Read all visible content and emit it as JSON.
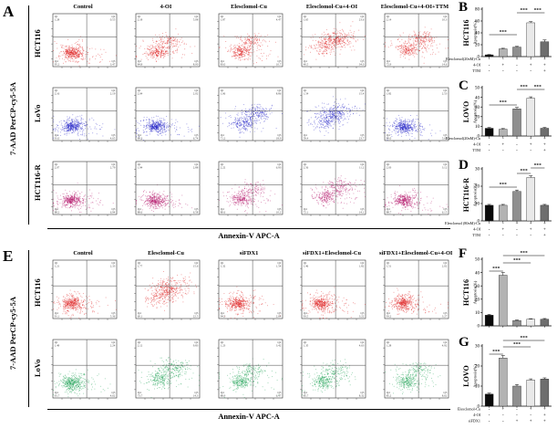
{
  "quadrant_names": {
    "top_left": "Q1",
    "top_right": "Q2",
    "bottom_left": "Q4",
    "bottom_right": "Q3"
  },
  "bar_colors": [
    "#0a0a0a",
    "#b3b3b3",
    "#8f8f8f",
    "#e9e9e9",
    "#6e6e6e"
  ],
  "flow_panels": [
    {
      "letter": "A",
      "ylabel": "7-AAD PerCP-cy5-5A",
      "xlabel": "Annexin-V APC-A",
      "columns": [
        "Control",
        "4-OI",
        "Elesclomol-Cu",
        "Elesclomol-Cu+4-OI",
        "Elesclomol-Cu+4-OI+TTM"
      ],
      "rows": [
        {
          "label": "HCT116",
          "color": "#e01d1d",
          "plots": [
            {
              "q1": "1.28",
              "q2": "0.55",
              "q4": "95.2",
              "q3": "3.47",
              "profile": "low"
            },
            {
              "q1": "2.18",
              "q2": "5.08",
              "q4": "84.8",
              "q3": "8.00",
              "profile": "mid"
            },
            {
              "q1": "1.87",
              "q2": "4.47",
              "q4": "83.0",
              "q3": "10.7",
              "profile": "mid"
            },
            {
              "q1": "1.65",
              "q2": "23.6",
              "q4": "40.5",
              "q3": "34.0",
              "profile": "vhigh"
            },
            {
              "q1": "2.14",
              "q2": "10.3",
              "q4": "72.9",
              "q3": "14.6",
              "profile": "high"
            }
          ]
        },
        {
          "label": "LoVo",
          "color": "#2222c8",
          "plots": [
            {
              "q1": "2.16",
              "q2": "2.19",
              "q4": "91.0",
              "q3": "4.65",
              "profile": "low"
            },
            {
              "q1": "2.04",
              "q2": "2.02",
              "q4": "89.2",
              "q3": "6.74",
              "profile": "low"
            },
            {
              "q1": "1.06",
              "q2": "8.86",
              "q4": "71.2",
              "q3": "18.9",
              "profile": "high"
            },
            {
              "q1": "1.54",
              "q2": "15.4",
              "q4": "59.4",
              "q3": "23.7",
              "profile": "vhigh"
            },
            {
              "q1": "1.82",
              "q2": "2.53",
              "q4": "90.0",
              "q3": "5.65",
              "profile": "low"
            }
          ]
        },
        {
          "label": "HCT116-R",
          "color": "#b5156b",
          "plots": [
            {
              "q1": "2.07",
              "q2": "2.79",
              "q4": "88.2",
              "q3": "6.94",
              "profile": "low"
            },
            {
              "q1": "1.94",
              "q2": "2.88",
              "q4": "88.6",
              "q3": "6.58",
              "profile": "low"
            },
            {
              "q1": "2.22",
              "q2": "6.93",
              "q4": "80.6",
              "q3": "10.2",
              "profile": "mid"
            },
            {
              "q1": "2.56",
              "q2": "11.2",
              "q4": "72.1",
              "q3": "14.1",
              "profile": "high"
            },
            {
              "q1": "2.03",
              "q2": "3.12",
              "q4": "88.7",
              "q3": "6.15",
              "profile": "low"
            }
          ]
        }
      ]
    },
    {
      "letter": "E",
      "ylabel": "7-AAD PerCP-cy5-5A",
      "xlabel": "Annexin-V APC-A",
      "columns": [
        "Control",
        "Elesclomol-Cu",
        "siFDX1",
        "siFDX1+Elesclomol-Cu",
        "siFDX1+Elesclomol-Cu+4-OI"
      ],
      "rows": [
        {
          "label": "HCT116",
          "color": "#e01d1d",
          "plots": [
            {
              "q1": "1.21",
              "q2": "2.33",
              "q4": "91.1",
              "q3": "5.36",
              "profile": "low"
            },
            {
              "q1": "1.77",
              "q2": "15.6",
              "q4": "60.1",
              "q3": "22.5",
              "profile": "vhigh"
            },
            {
              "q1": "1.32",
              "q2": "1.54",
              "q4": "94.5",
              "q3": "2.64",
              "profile": "low"
            },
            {
              "q1": "1.46",
              "q2": "1.82",
              "q4": "93.5",
              "q3": "3.22",
              "profile": "low"
            },
            {
              "q1": "1.51",
              "q2": "2.02",
              "q4": "93.2",
              "q3": "3.27",
              "profile": "low"
            }
          ]
        },
        {
          "label": "LoVo",
          "color": "#18a050",
          "plots": [
            {
              "q1": "1.49",
              "q2": "2.24",
              "q4": "91.7",
              "q3": "4.62",
              "profile": "low"
            },
            {
              "q1": "2.12",
              "q2": "9.83",
              "q4": "73.7",
              "q3": "14.3",
              "profile": "high"
            },
            {
              "q1": "1.23",
              "q2": "3.42",
              "q4": "88.9",
              "q3": "6.47",
              "profile": "mid"
            },
            {
              "q1": "1.35",
              "q2": "4.63",
              "q4": "85.7",
              "q3": "8.32",
              "profile": "mid"
            },
            {
              "q1": "1.28",
              "q2": "4.92",
              "q4": "85.2",
              "q3": "8.62",
              "profile": "mid"
            }
          ]
        }
      ]
    }
  ],
  "chart_data": [
    {
      "type": "bar",
      "letter": "B",
      "cell_line": "HCT116",
      "ylabel": "Apoptosis(%)",
      "ylim": [
        0,
        80
      ],
      "yticks": [
        0,
        20,
        40,
        60,
        80
      ],
      "values": [
        3,
        13,
        16,
        57,
        25
      ],
      "errors": [
        0.5,
        1,
        1.2,
        1.8,
        3
      ],
      "sig": [
        {
          "a": 0,
          "b": 2,
          "y": 38,
          "label": "***"
        },
        {
          "a": 2,
          "b": 3,
          "y": 14,
          "label": "***"
        },
        {
          "a": 3,
          "b": 4,
          "y": 14,
          "label": "***"
        }
      ],
      "conditions": [
        {
          "label": "Elesclomol(20nM)-Cu",
          "signs": [
            "-",
            "-",
            "+",
            "+",
            "+"
          ]
        },
        {
          "label": "4-OI",
          "signs": [
            "-",
            "+",
            "-",
            "+",
            "+"
          ]
        },
        {
          "label": "TTM",
          "signs": [
            "-",
            "-",
            "-",
            "-",
            "+"
          ]
        }
      ]
    },
    {
      "type": "bar",
      "letter": "C",
      "cell_line": "LOVO",
      "ylabel": "Apoptosis(%)",
      "ylim": [
        0,
        50
      ],
      "yticks": [
        0,
        10,
        20,
        30,
        40,
        50
      ],
      "values": [
        8,
        7,
        28,
        39,
        8
      ],
      "errors": [
        0.8,
        0.7,
        1.5,
        1.5,
        0.8
      ],
      "sig": [
        {
          "a": 0,
          "b": 2,
          "y": 29,
          "label": "***"
        },
        {
          "a": 2,
          "b": 3,
          "y": 12,
          "label": "***"
        },
        {
          "a": 3,
          "b": 4,
          "y": 12,
          "label": "***"
        }
      ],
      "conditions": [
        {
          "label": "Elesclomol(20nM)-Cu",
          "signs": [
            "-",
            "-",
            "+",
            "+",
            "+"
          ]
        },
        {
          "label": "4-OI",
          "signs": [
            "-",
            "+",
            "-",
            "+",
            "+"
          ]
        },
        {
          "label": "TTM",
          "signs": [
            "-",
            "-",
            "-",
            "-",
            "+"
          ]
        }
      ]
    },
    {
      "type": "bar",
      "letter": "D",
      "cell_line": "HCT116-R",
      "ylabel": "Apoptosis(%)",
      "ylim": [
        0,
        30
      ],
      "yticks": [
        0,
        10,
        20,
        30
      ],
      "values": [
        9,
        9,
        17,
        25,
        9
      ],
      "errors": [
        0.5,
        0.5,
        0.8,
        1,
        0.5
      ],
      "sig": [
        {
          "a": 0,
          "b": 2,
          "y": 32,
          "label": "***"
        },
        {
          "a": 2,
          "b": 3,
          "y": 17,
          "label": "***"
        },
        {
          "a": 3,
          "b": 4,
          "y": 11,
          "label": "***"
        }
      ],
      "conditions": [
        {
          "label": "Elesclomol (80nM)-Cu",
          "signs": [
            "-",
            "-",
            "+",
            "+",
            "+"
          ]
        },
        {
          "label": "4-OI",
          "signs": [
            "-",
            "+",
            "-",
            "+",
            "+"
          ]
        },
        {
          "label": "TTM",
          "signs": [
            "-",
            "-",
            "-",
            "-",
            "+"
          ]
        }
      ]
    },
    {
      "type": "bar",
      "letter": "F",
      "cell_line": "HCT116",
      "ylabel": "Apoptosis(%)",
      "ylim": [
        0,
        50
      ],
      "yticks": [
        0,
        10,
        20,
        30,
        40,
        50
      ],
      "values": [
        8,
        38,
        4,
        5,
        5
      ],
      "errors": [
        0.6,
        2,
        0.4,
        0.4,
        0.5
      ],
      "sig": [
        {
          "a": 0,
          "b": 1,
          "y": 27,
          "label": "***"
        },
        {
          "a": 1,
          "b": 3,
          "y": 18,
          "label": "***"
        },
        {
          "a": 1,
          "b": 4,
          "y": 10,
          "label": "***"
        }
      ],
      "conditions": null
    },
    {
      "type": "bar",
      "letter": "G",
      "cell_line": "LOVO",
      "ylabel": "Apoptosis(%)",
      "ylim": [
        0,
        30
      ],
      "yticks": [
        0,
        10,
        20,
        30
      ],
      "values": [
        6,
        24,
        10,
        13,
        13.5
      ],
      "errors": [
        0.5,
        1.2,
        0.8,
        0.6,
        0.6
      ],
      "sig": [
        {
          "a": 0,
          "b": 1,
          "y": 21,
          "label": "***"
        },
        {
          "a": 1,
          "b": 3,
          "y": 13,
          "label": "***"
        },
        {
          "a": 1,
          "b": 4,
          "y": 6,
          "label": "***"
        }
      ],
      "conditions": [
        {
          "label": "Elesclomol-Cu",
          "signs": [
            "-",
            "+",
            "-",
            "+",
            "+"
          ]
        },
        {
          "label": "4-OI",
          "signs": [
            "-",
            "-",
            "-",
            "-",
            "+"
          ]
        },
        {
          "label": "siFDX1",
          "signs": [
            "-",
            "-",
            "+",
            "+",
            "+"
          ]
        }
      ]
    }
  ]
}
